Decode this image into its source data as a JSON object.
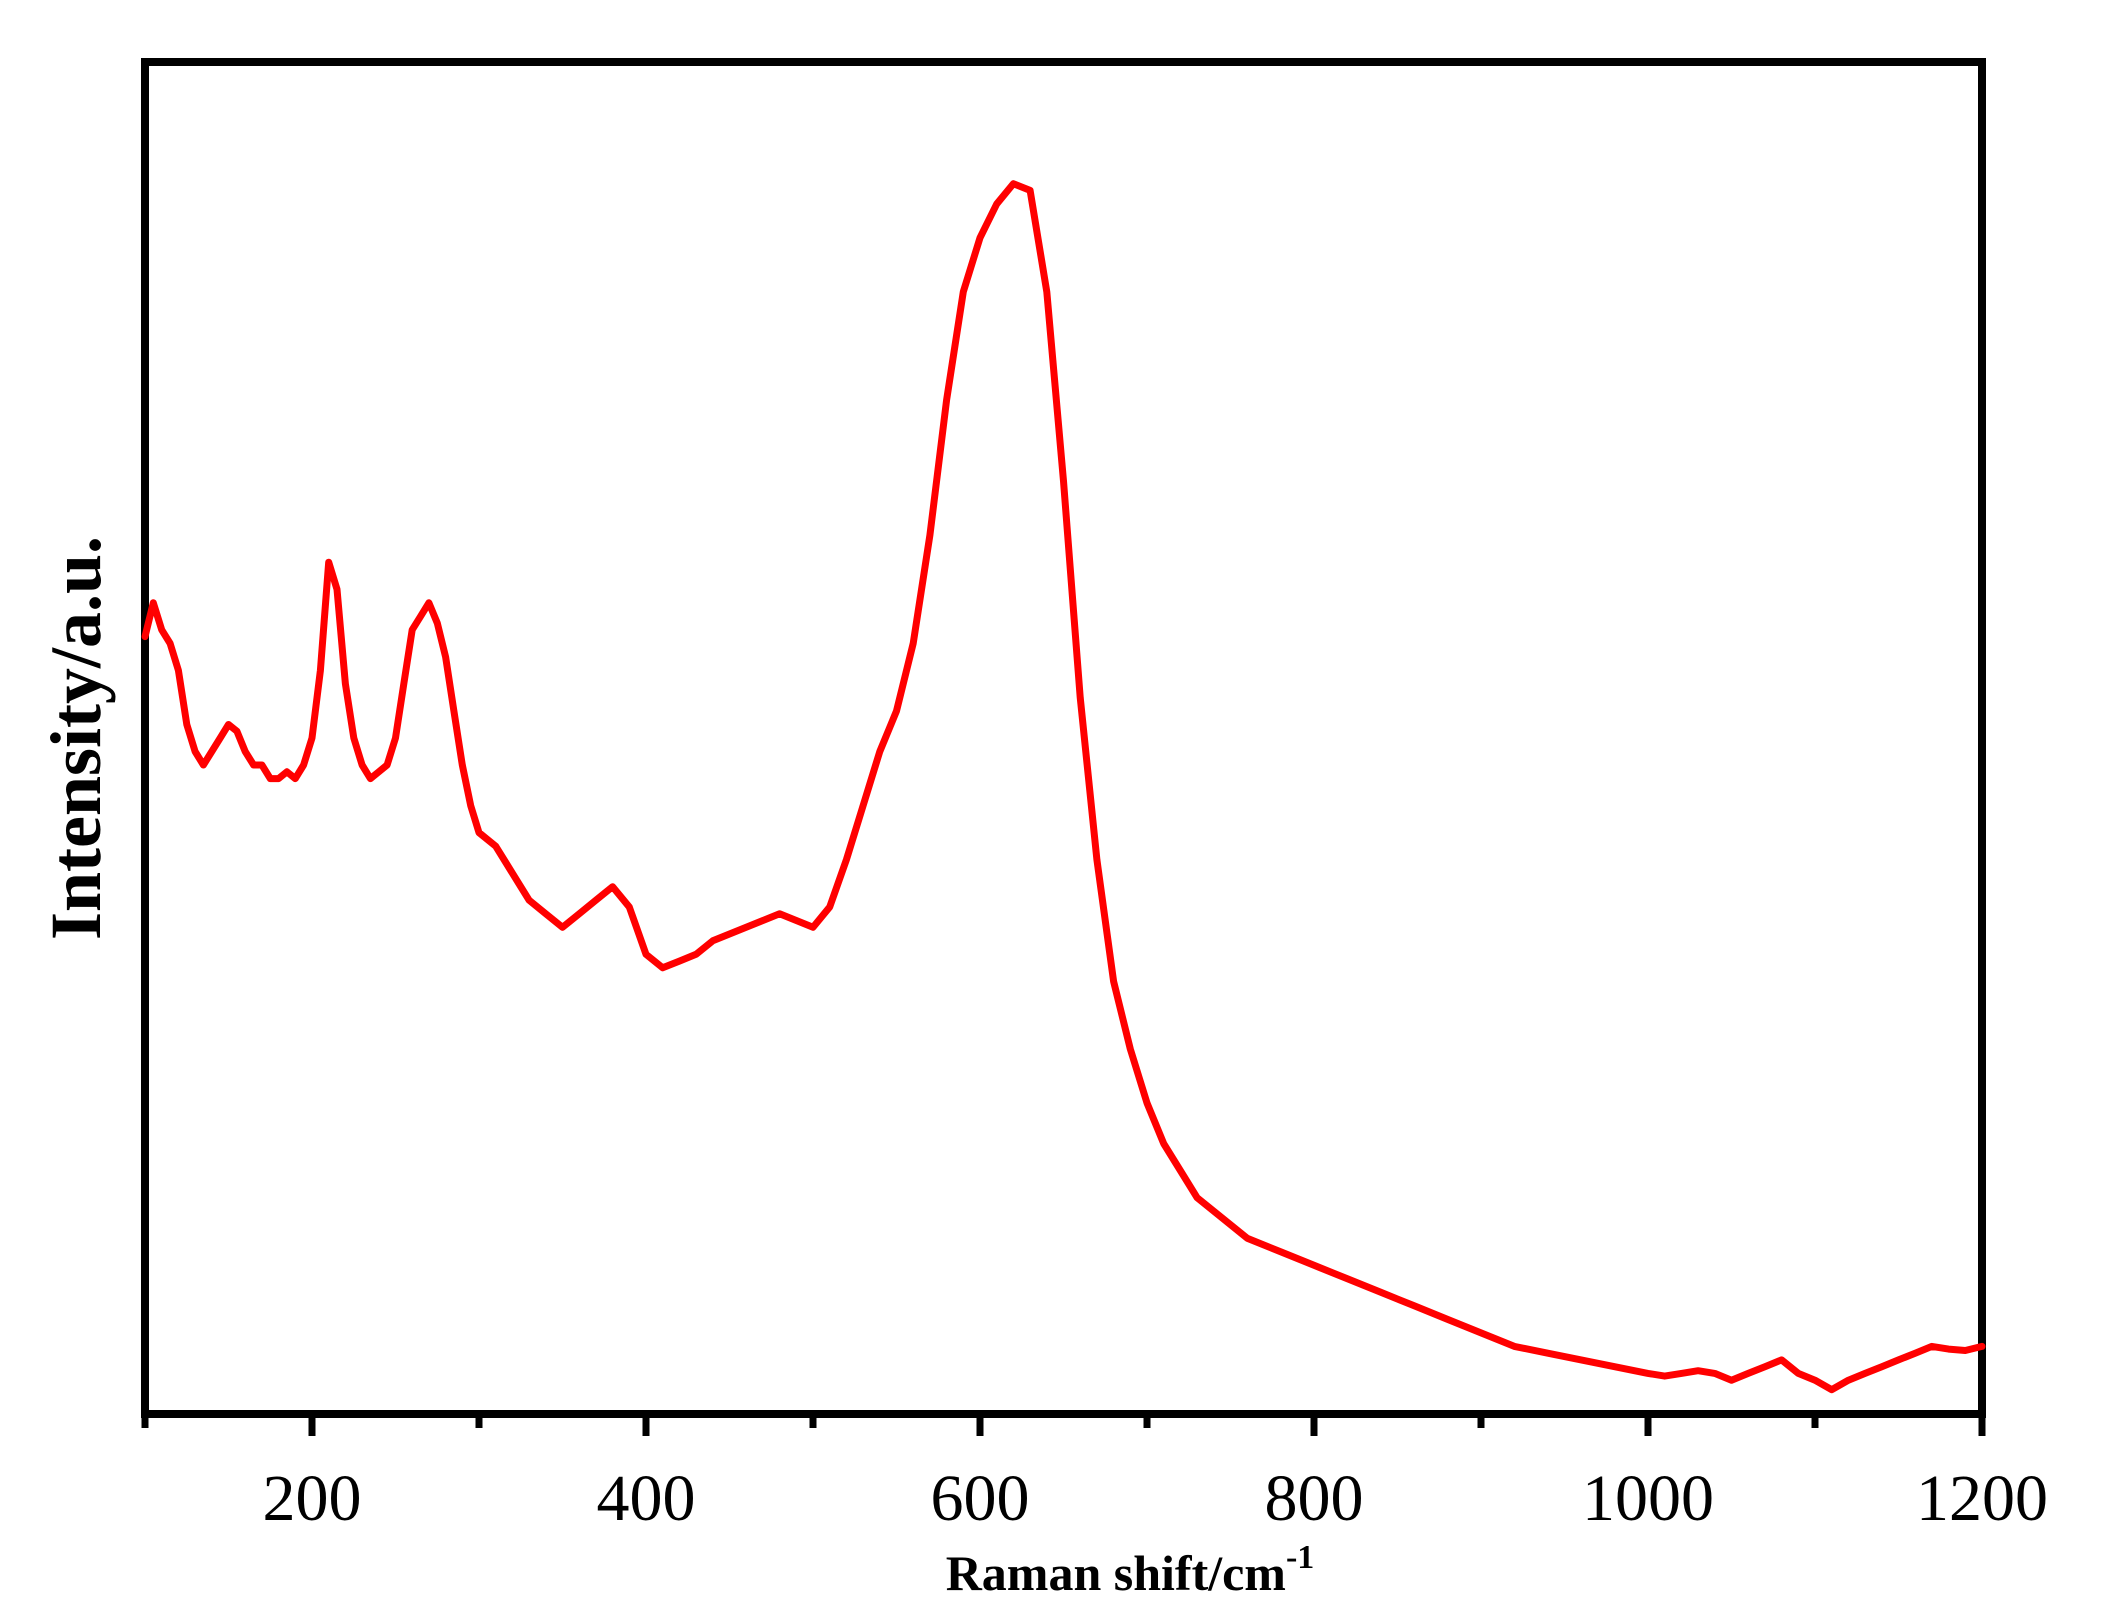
{
  "chart_data": {
    "type": "line",
    "title": "",
    "xlabel": "Raman shift/cm",
    "xlabel_superscript": "-1",
    "ylabel": "Intensity/a.u.",
    "xlim": [
      100,
      1200
    ],
    "ylim": [
      0,
      1
    ],
    "x_ticks_major": [
      200,
      400,
      600,
      800,
      1000,
      1200
    ],
    "x_ticks_minor": [
      100,
      300,
      500,
      700,
      900,
      1100
    ],
    "y_tick_labels": false,
    "grid": false,
    "legend": "none",
    "series": [
      {
        "color": "#ff0000",
        "x": [
          100,
          105,
          110,
          115,
          120,
          125,
          130,
          135,
          140,
          145,
          150,
          155,
          160,
          165,
          170,
          175,
          180,
          185,
          190,
          195,
          200,
          205,
          210,
          215,
          220,
          225,
          230,
          235,
          240,
          245,
          250,
          255,
          260,
          265,
          270,
          275,
          280,
          285,
          290,
          295,
          300,
          310,
          320,
          330,
          340,
          350,
          360,
          370,
          380,
          390,
          400,
          410,
          420,
          430,
          440,
          450,
          460,
          470,
          480,
          490,
          500,
          510,
          520,
          530,
          540,
          550,
          560,
          570,
          580,
          590,
          600,
          610,
          620,
          630,
          640,
          650,
          660,
          670,
          680,
          690,
          700,
          710,
          720,
          730,
          740,
          750,
          760,
          780,
          800,
          820,
          840,
          860,
          880,
          900,
          920,
          940,
          960,
          980,
          1000,
          1010,
          1020,
          1030,
          1040,
          1050,
          1060,
          1070,
          1080,
          1090,
          1100,
          1110,
          1120,
          1130,
          1140,
          1150,
          1160,
          1170,
          1180,
          1190,
          1200
        ],
        "y": [
          0.575,
          0.6,
          0.58,
          0.57,
          0.55,
          0.51,
          0.49,
          0.48,
          0.49,
          0.5,
          0.51,
          0.505,
          0.49,
          0.48,
          0.48,
          0.47,
          0.47,
          0.475,
          0.47,
          0.48,
          0.5,
          0.55,
          0.63,
          0.61,
          0.54,
          0.5,
          0.48,
          0.47,
          0.475,
          0.48,
          0.5,
          0.54,
          0.58,
          0.59,
          0.6,
          0.585,
          0.56,
          0.52,
          0.48,
          0.45,
          0.43,
          0.42,
          0.4,
          0.38,
          0.37,
          0.36,
          0.37,
          0.38,
          0.39,
          0.375,
          0.34,
          0.33,
          0.335,
          0.34,
          0.35,
          0.355,
          0.36,
          0.365,
          0.37,
          0.365,
          0.36,
          0.375,
          0.41,
          0.45,
          0.49,
          0.52,
          0.57,
          0.65,
          0.75,
          0.83,
          0.87,
          0.895,
          0.91,
          0.905,
          0.83,
          0.69,
          0.53,
          0.41,
          0.32,
          0.27,
          0.23,
          0.2,
          0.18,
          0.16,
          0.15,
          0.14,
          0.13,
          0.12,
          0.11,
          0.1,
          0.09,
          0.08,
          0.07,
          0.06,
          0.05,
          0.045,
          0.04,
          0.035,
          0.03,
          0.028,
          0.03,
          0.032,
          0.03,
          0.025,
          0.03,
          0.035,
          0.04,
          0.03,
          0.025,
          0.018,
          0.025,
          0.03,
          0.035,
          0.04,
          0.045,
          0.05,
          0.048,
          0.047,
          0.05
        ]
      }
    ]
  }
}
